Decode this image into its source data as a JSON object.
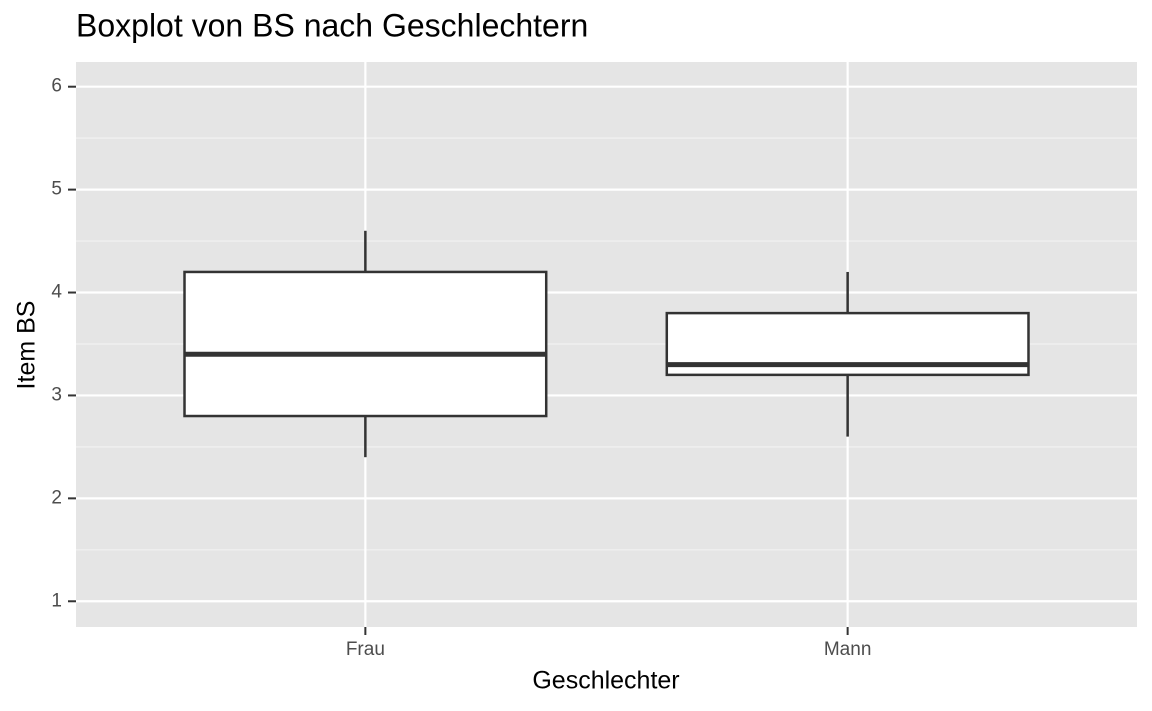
{
  "chart_data": {
    "type": "boxplot",
    "title": "Boxplot von BS nach Geschlechtern",
    "x_label": "Geschlechter",
    "y_label": "Item BS",
    "categories": [
      "Frau",
      "Mann"
    ],
    "low": [
      2.4,
      2.6
    ],
    "q1": [
      2.8,
      3.2
    ],
    "median": [
      3.4,
      3.3
    ],
    "q3": [
      4.2,
      3.8
    ],
    "high": [
      4.6,
      4.2
    ],
    "ylim": [
      0.75,
      6.24
    ],
    "yticks": [
      1,
      2,
      3,
      4,
      5,
      6
    ],
    "grid": true,
    "box_fill": "#ffffff",
    "box_stroke": "#333333",
    "panel_color": "#e5e5e5"
  }
}
